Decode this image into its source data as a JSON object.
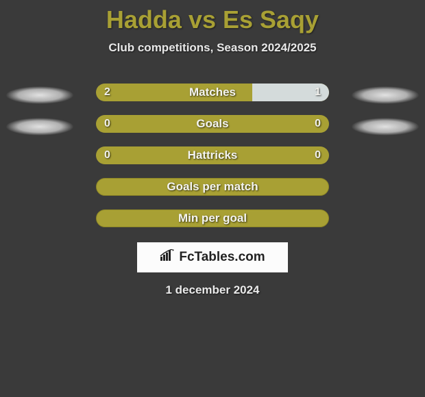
{
  "title": "Hadda vs Es Saqy",
  "subtitle": "Club competitions, Season 2024/2025",
  "date": "1 december 2024",
  "logo_text": "FcTables.com",
  "colors": {
    "background": "#3a3a3a",
    "bar_base": "#a8a034",
    "bar_fill": "#d4dbdb",
    "title_color": "#a8a034",
    "text_color": "#f0f0ec"
  },
  "rows": [
    {
      "label": "Matches",
      "left_val": "2",
      "right_val": "1",
      "fill_side": "right",
      "fill_pct": 33,
      "left_shadow": true,
      "right_shadow": true,
      "has_values": true,
      "bordered": false
    },
    {
      "label": "Goals",
      "left_val": "0",
      "right_val": "0",
      "fill_side": "none",
      "fill_pct": 0,
      "left_shadow": true,
      "right_shadow": true,
      "has_values": true,
      "bordered": false
    },
    {
      "label": "Hattricks",
      "left_val": "0",
      "right_val": "0",
      "fill_side": "none",
      "fill_pct": 0,
      "left_shadow": false,
      "right_shadow": false,
      "has_values": true,
      "bordered": false
    },
    {
      "label": "Goals per match",
      "left_val": "",
      "right_val": "",
      "fill_side": "none",
      "fill_pct": 0,
      "left_shadow": false,
      "right_shadow": false,
      "has_values": false,
      "bordered": true
    },
    {
      "label": "Min per goal",
      "left_val": "",
      "right_val": "",
      "fill_side": "none",
      "fill_pct": 0,
      "left_shadow": false,
      "right_shadow": false,
      "has_values": false,
      "bordered": true
    }
  ]
}
